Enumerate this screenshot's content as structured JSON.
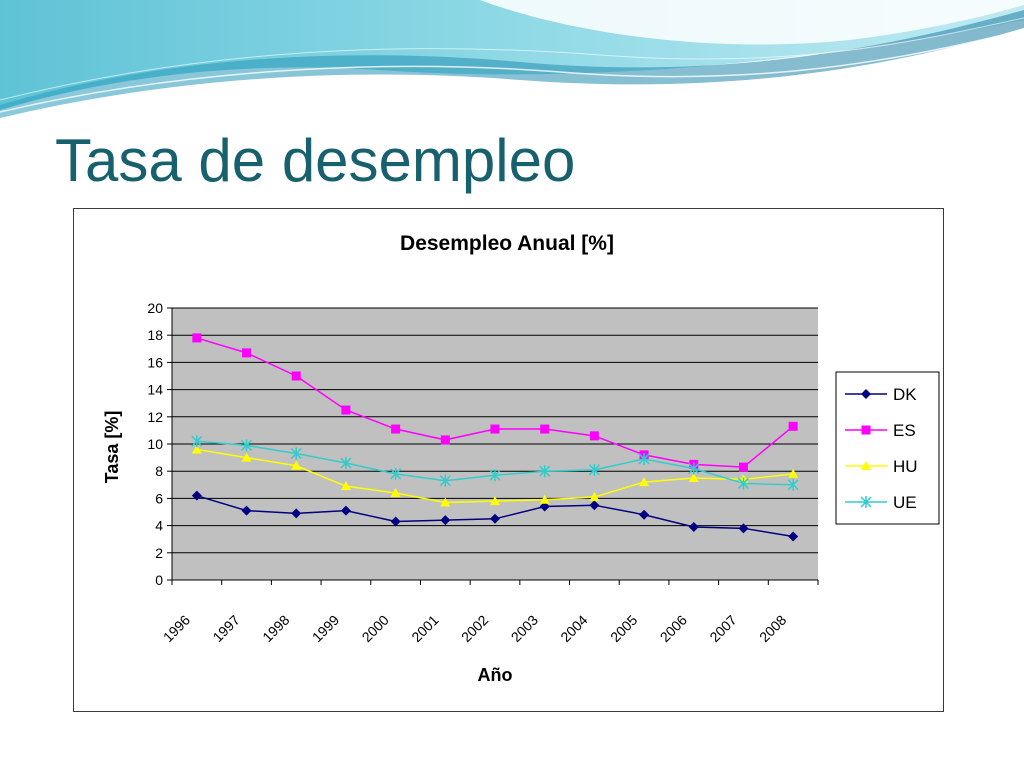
{
  "slide": {
    "title": "Tasa de desempleo"
  },
  "chart_data": {
    "type": "line",
    "title": "Desempleo Anual [%]",
    "xlabel": "Año",
    "ylabel": "Tasa [%]",
    "categories": [
      "1996",
      "1997",
      "1998",
      "1999",
      "2000",
      "2001",
      "2002",
      "2003",
      "2004",
      "2005",
      "2006",
      "2007",
      "2008"
    ],
    "ylim": [
      0,
      20
    ],
    "yticks": [
      0,
      2,
      4,
      6,
      8,
      10,
      12,
      14,
      16,
      18,
      20
    ],
    "grid": true,
    "legend": "right",
    "plot_background": "#c0c0c0",
    "series": [
      {
        "name": "DK",
        "color": "#000080",
        "marker": "diamond",
        "values": [
          6.2,
          5.1,
          4.9,
          5.1,
          4.3,
          4.4,
          4.5,
          5.4,
          5.5,
          4.8,
          3.9,
          3.8,
          3.2
        ]
      },
      {
        "name": "ES",
        "color": "#ff00ff",
        "marker": "square",
        "values": [
          17.8,
          16.7,
          15.0,
          12.5,
          11.1,
          10.3,
          11.1,
          11.1,
          10.6,
          9.2,
          8.5,
          8.3,
          11.3
        ]
      },
      {
        "name": "HU",
        "color": "#ffff00",
        "marker": "triangle",
        "values": [
          9.6,
          9.0,
          8.4,
          6.9,
          6.4,
          5.7,
          5.8,
          5.9,
          6.1,
          7.2,
          7.5,
          7.4,
          7.8
        ]
      },
      {
        "name": "UE",
        "color": "#33cccc",
        "marker": "cross",
        "values": [
          10.2,
          9.9,
          9.3,
          8.6,
          7.8,
          7.3,
          7.7,
          8.0,
          8.1,
          8.9,
          8.2,
          7.1,
          7.0
        ]
      }
    ]
  }
}
